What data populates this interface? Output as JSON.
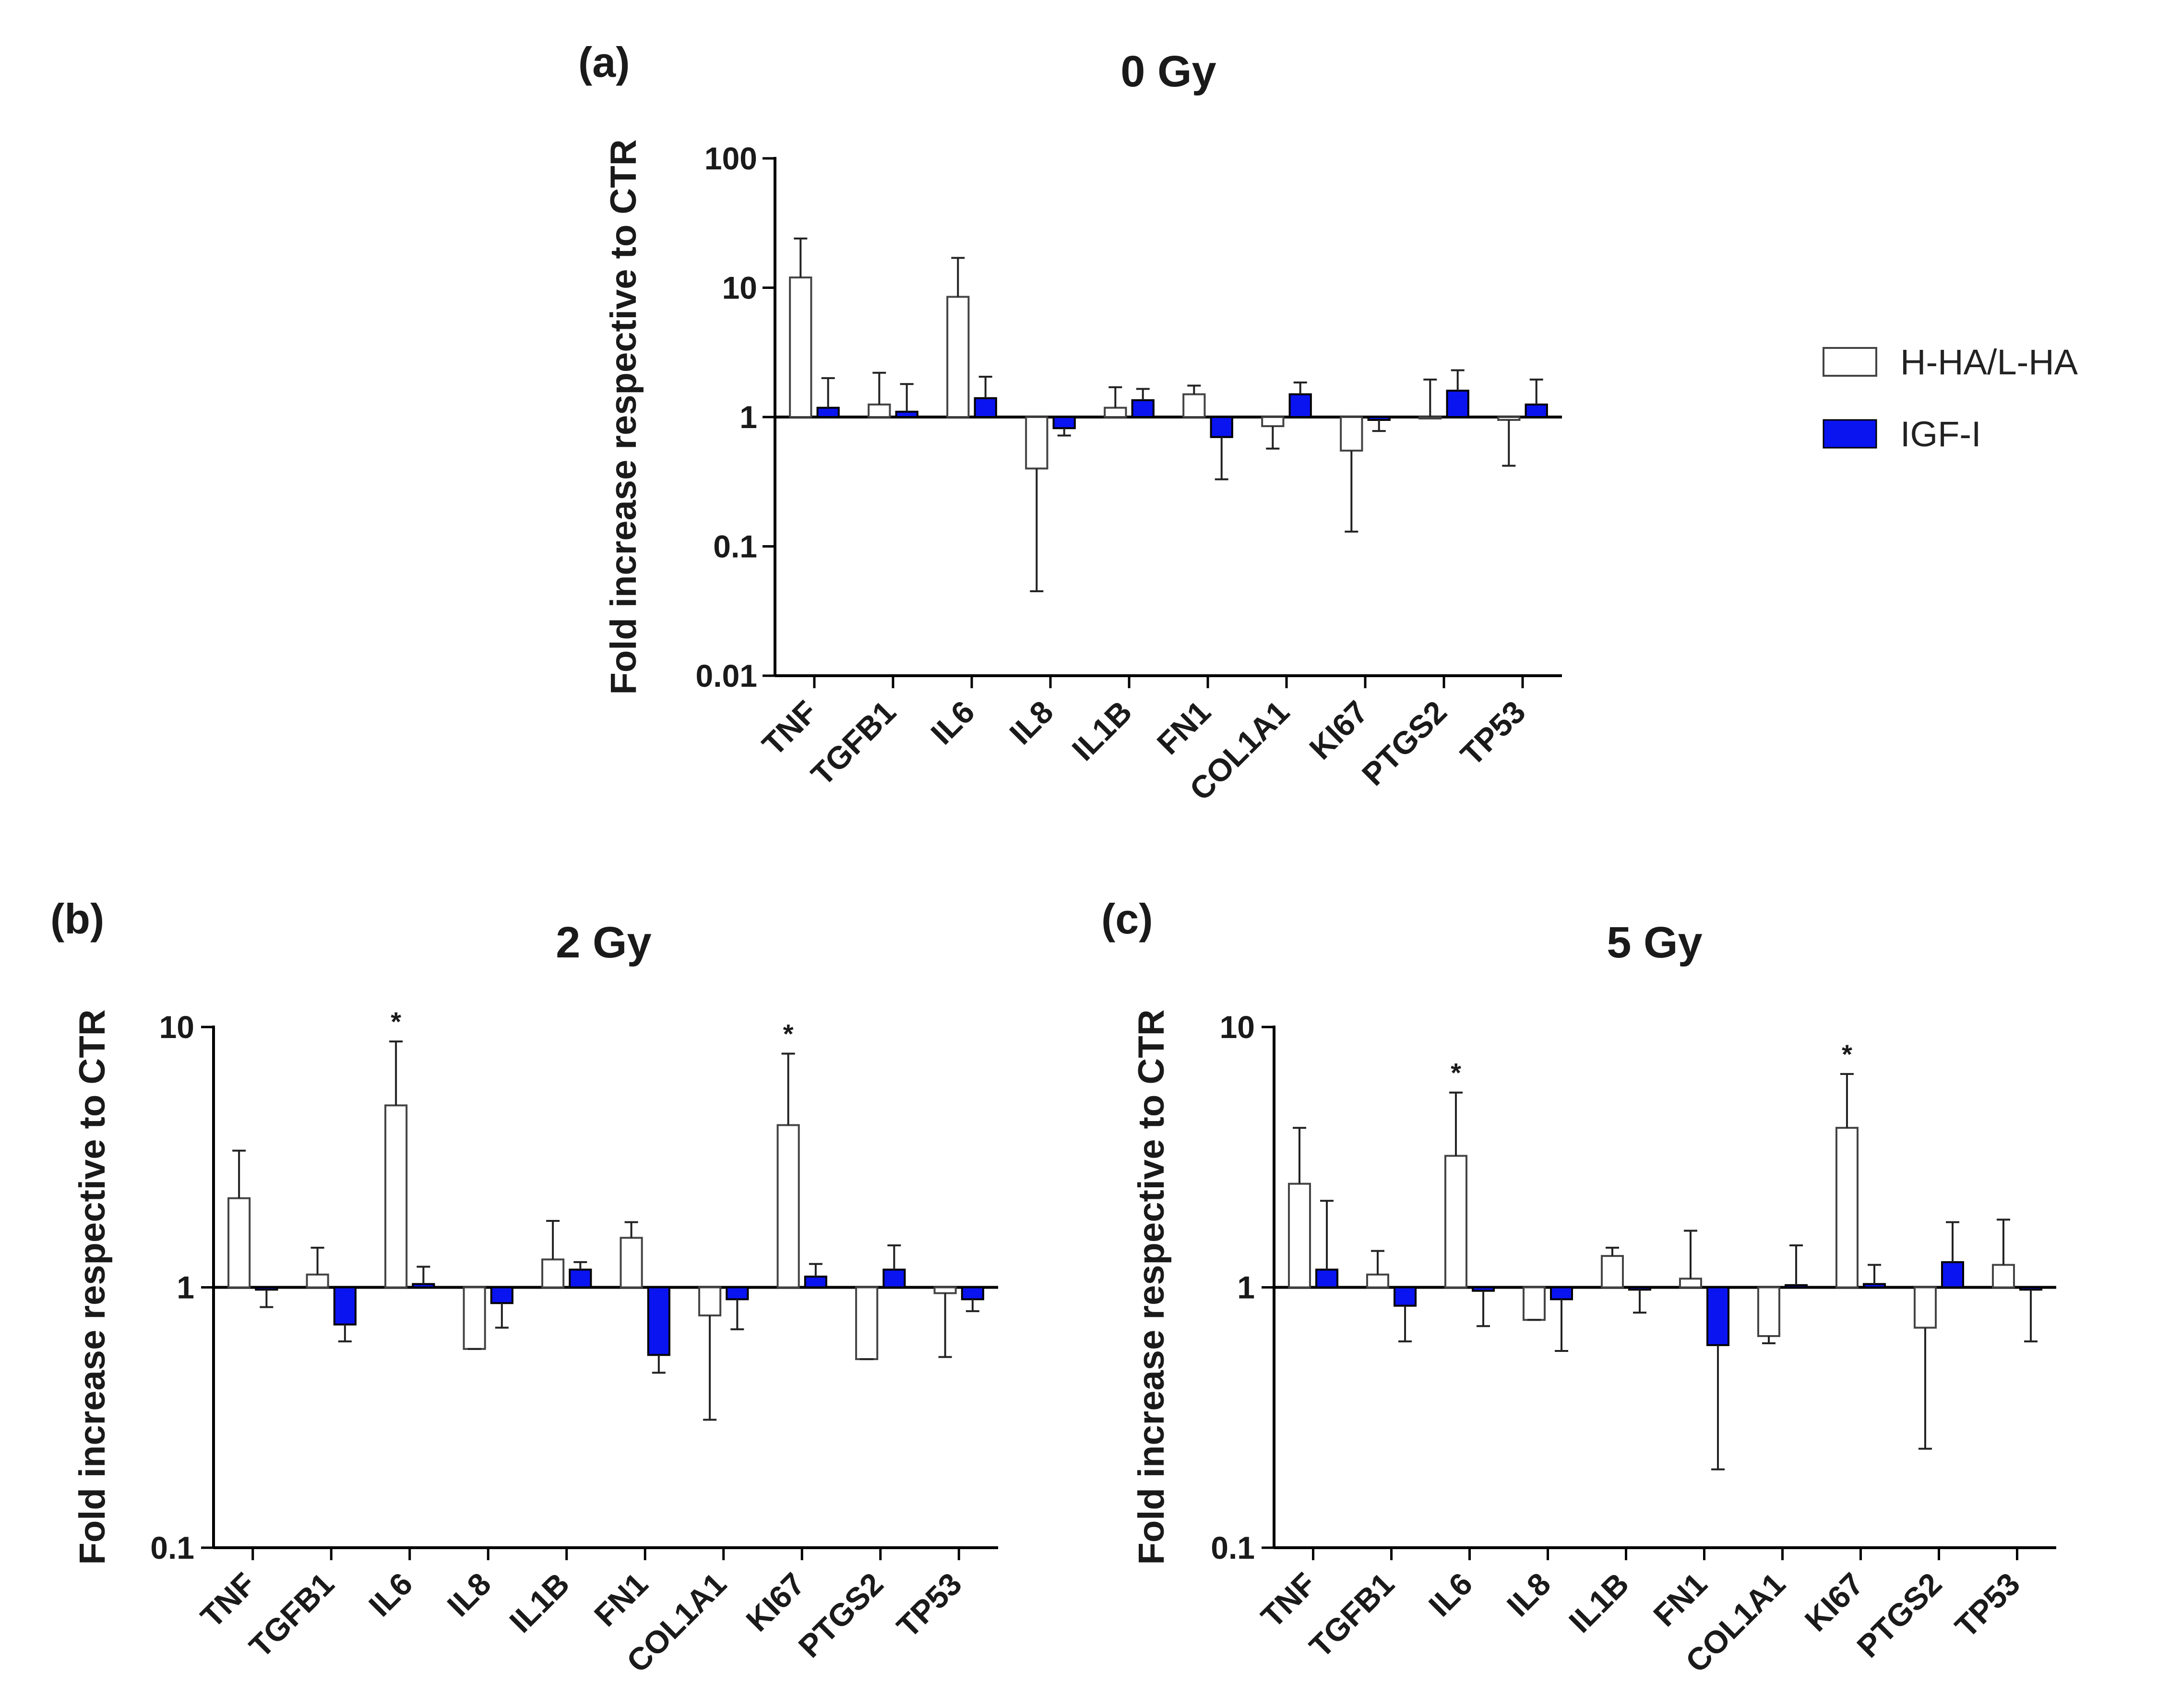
{
  "legend": {
    "items": [
      {
        "label": "H-HA/L-HA",
        "color": "#ffffff"
      },
      {
        "label": "IGF-I",
        "color": "#0a14f0"
      }
    ]
  },
  "chart_data": [
    {
      "id": "a",
      "panel_label": "(a)",
      "type": "bar",
      "title": "0 Gy",
      "xlabel": "",
      "ylabel": "Fold increase respective to CTR",
      "yscale": "log",
      "ylim": [
        0.01,
        100
      ],
      "yticks": [
        "100",
        "10",
        "1",
        "0.1",
        "0.01"
      ],
      "baseline": 1,
      "categories": [
        "TNF",
        "TGFB1",
        "IL6",
        "IL8",
        "IL1B",
        "FN1",
        "COL1A1",
        "KI67",
        "PTGS2",
        "TP53"
      ],
      "series": [
        {
          "name": "H-HA/L-HA",
          "values": [
            12,
            1.25,
            8.5,
            0.4,
            1.18,
            1.5,
            0.85,
            0.55,
            1.0,
            0.95
          ],
          "errors": [
            24,
            2.2,
            17,
            0.045,
            1.7,
            1.75,
            0.57,
            0.13,
            1.95,
            0.42
          ]
        },
        {
          "name": "IGF-I",
          "values": [
            1.18,
            1.1,
            1.4,
            0.82,
            1.35,
            0.7,
            1.5,
            0.95,
            1.6,
            1.25
          ],
          "errors": [
            2.0,
            1.8,
            2.05,
            0.72,
            1.65,
            0.33,
            1.85,
            0.78,
            2.3,
            1.95
          ]
        }
      ],
      "annotations": []
    },
    {
      "id": "b",
      "panel_label": "(b)",
      "type": "bar",
      "title": "2 Gy",
      "xlabel": "",
      "ylabel": "Fold increase respective to CTR",
      "yscale": "log",
      "ylim": [
        0.1,
        10
      ],
      "yticks": [
        "10",
        "1",
        "0.1"
      ],
      "baseline": 1,
      "categories": [
        "TNF",
        "TGFB1",
        "IL6",
        "IL8",
        "IL1B",
        "FN1",
        "COL1A1",
        "KI67",
        "PTGS2",
        "TP53"
      ],
      "series": [
        {
          "name": "H-HA/L-HA",
          "values": [
            2.2,
            1.12,
            5.0,
            0.58,
            1.28,
            1.55,
            0.78,
            4.2,
            0.53,
            0.95
          ],
          "errors": [
            3.35,
            1.42,
            8.8,
            0.58,
            1.8,
            1.78,
            0.31,
            7.9,
            0.53,
            0.54
          ]
        },
        {
          "name": "IGF-I",
          "values": [
            0.98,
            0.72,
            1.03,
            0.87,
            1.17,
            0.55,
            0.9,
            1.1,
            1.17,
            0.9
          ],
          "errors": [
            0.84,
            0.62,
            1.2,
            0.7,
            1.25,
            0.47,
            0.69,
            1.23,
            1.45,
            0.81
          ]
        }
      ],
      "annotations": [
        {
          "category": "IL6",
          "text": "*"
        },
        {
          "category": "KI67",
          "text": "*"
        }
      ]
    },
    {
      "id": "c",
      "panel_label": "(c)",
      "type": "bar",
      "title": "5 Gy",
      "xlabel": "",
      "ylabel": "Fold increase respective to CTR",
      "yscale": "log",
      "ylim": [
        0.1,
        10
      ],
      "yticks": [
        "10",
        "1",
        "0.1"
      ],
      "baseline": 1,
      "categories": [
        "TNF",
        "TGFB1",
        "IL6",
        "IL8",
        "IL1B",
        "FN1",
        "COL1A1",
        "KI67",
        "PTGS2",
        "TP53"
      ],
      "series": [
        {
          "name": "H-HA/L-HA",
          "values": [
            2.5,
            1.12,
            3.2,
            0.75,
            1.32,
            1.08,
            0.65,
            4.1,
            0.7,
            1.22
          ],
          "errors": [
            4.1,
            1.38,
            5.6,
            0.75,
            1.42,
            1.65,
            0.61,
            6.6,
            0.24,
            1.82
          ]
        },
        {
          "name": "IGF-I",
          "values": [
            1.17,
            0.85,
            0.97,
            0.9,
            0.98,
            0.6,
            1.02,
            1.03,
            1.25,
            0.98
          ],
          "errors": [
            2.15,
            0.62,
            0.71,
            0.57,
            0.8,
            0.2,
            1.45,
            1.22,
            1.78,
            0.62
          ]
        }
      ],
      "annotations": [
        {
          "category": "IL6",
          "text": "*"
        },
        {
          "category": "KI67",
          "text": "*"
        }
      ]
    }
  ]
}
